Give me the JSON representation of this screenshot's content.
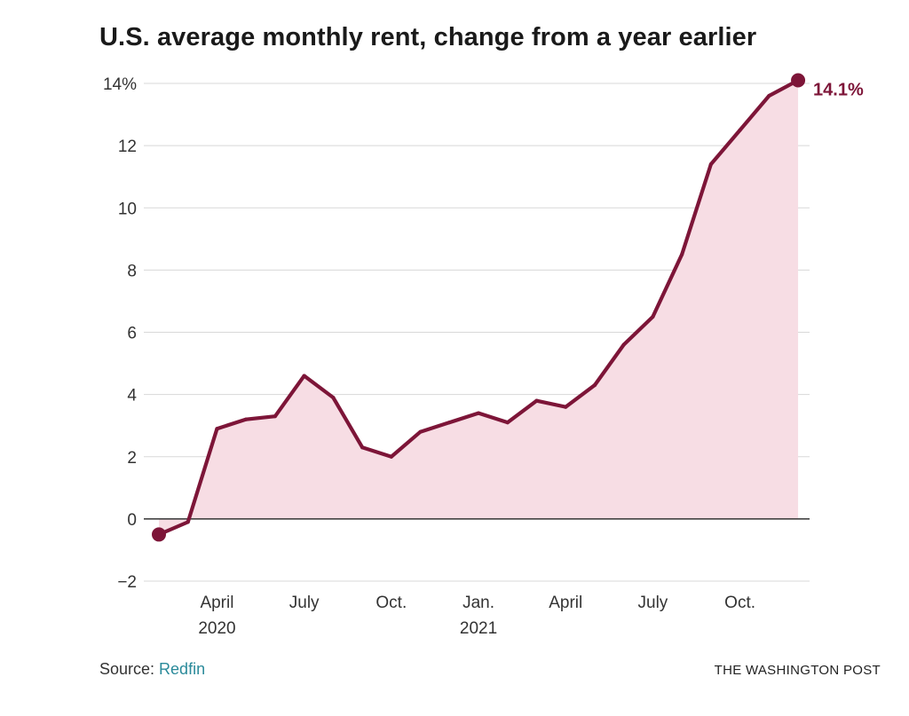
{
  "chart_data": {
    "type": "area",
    "title": "U.S. average monthly rent, change from a year earlier",
    "xlabel": "",
    "ylabel": "",
    "ylim": [
      -2,
      14
    ],
    "yticks": [
      -2,
      0,
      2,
      4,
      6,
      8,
      10,
      12,
      14
    ],
    "ytick_labels": [
      "−2",
      "0",
      "2",
      "4",
      "6",
      "8",
      "10",
      "12",
      "14%"
    ],
    "xticks": [
      {
        "index": 2,
        "label": "April",
        "sublabel": "2020"
      },
      {
        "index": 5,
        "label": "July",
        "sublabel": ""
      },
      {
        "index": 8,
        "label": "Oct.",
        "sublabel": ""
      },
      {
        "index": 11,
        "label": "Jan.",
        "sublabel": "2021"
      },
      {
        "index": 14,
        "label": "April",
        "sublabel": ""
      },
      {
        "index": 17,
        "label": "July",
        "sublabel": ""
      },
      {
        "index": 20,
        "label": "Oct.",
        "sublabel": ""
      }
    ],
    "x": [
      "Feb 2020",
      "Mar 2020",
      "Apr 2020",
      "May 2020",
      "Jun 2020",
      "Jul 2020",
      "Aug 2020",
      "Sep 2020",
      "Oct 2020",
      "Nov 2020",
      "Dec 2020",
      "Jan 2021",
      "Feb 2021",
      "Mar 2021",
      "Apr 2021",
      "May 2021",
      "Jun 2021",
      "Jul 2021",
      "Aug 2021",
      "Sep 2021",
      "Oct 2021",
      "Nov 2021",
      "Dec 2021"
    ],
    "series": [
      {
        "name": "Rent change",
        "values": [
          -0.5,
          -0.1,
          2.9,
          3.2,
          3.3,
          4.6,
          3.9,
          2.3,
          2.0,
          2.8,
          3.1,
          3.4,
          3.1,
          3.8,
          3.6,
          4.3,
          5.6,
          6.5,
          8.5,
          11.4,
          12.5,
          13.6,
          14.1
        ]
      }
    ],
    "annotation": {
      "text": "14.1%",
      "index": 22
    },
    "grid": true,
    "colors": {
      "line": "#7d1538",
      "fill": "#f7dde4",
      "grid": "#d8d8d8",
      "zero": "#333333"
    }
  },
  "footer": {
    "source_label": "Source: ",
    "source_name": "Redfin",
    "brand": "THE WASHINGTON POST"
  }
}
